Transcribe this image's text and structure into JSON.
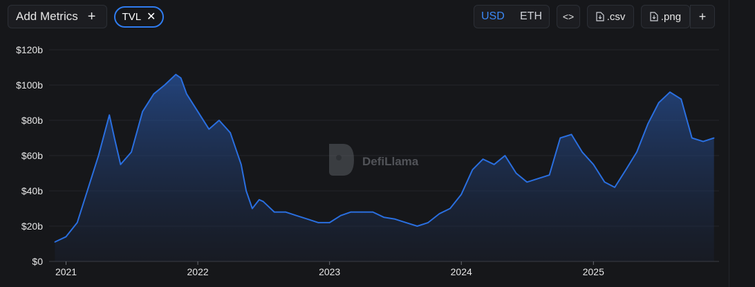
{
  "toolbar": {
    "add_metrics_label": "Add Metrics",
    "add_metrics_icon": "plus-icon",
    "chip_label": "TVL",
    "chip_close_icon": "close-icon",
    "currency_options": [
      "USD",
      "ETH"
    ],
    "currency_selected": "USD",
    "embed_icon": "code-icon",
    "csv_label": ".csv",
    "png_label": ".png",
    "file_icon": "download-file-icon",
    "more_icon": "plus-icon"
  },
  "watermark": "DefiLlama",
  "colors": {
    "accent": "#3b88f5",
    "line": "#2a6fe0",
    "background": "#16171a"
  },
  "chart_data": {
    "type": "area",
    "title": "",
    "xlabel": "",
    "ylabel": "",
    "series": [
      {
        "x": [
          "2020-12-01",
          "2021-01-01",
          "2021-02-01",
          "2021-03-01",
          "2021-04-01",
          "2021-05-01",
          "2021-05-15",
          "2021-06-01",
          "2021-07-01",
          "2021-08-01",
          "2021-09-01",
          "2021-10-01",
          "2021-11-01",
          "2021-11-15",
          "2021-12-01",
          "2022-01-01",
          "2022-02-01",
          "2022-03-01",
          "2022-04-01",
          "2022-05-01",
          "2022-05-15",
          "2022-06-01",
          "2022-06-20",
          "2022-07-01",
          "2022-08-01",
          "2022-09-01",
          "2022-10-01",
          "2022-11-01",
          "2022-12-01",
          "2023-01-01",
          "2023-02-01",
          "2023-03-01",
          "2023-04-01",
          "2023-05-01",
          "2023-06-01",
          "2023-07-01",
          "2023-08-01",
          "2023-09-01",
          "2023-10-01",
          "2023-11-01",
          "2023-12-01",
          "2024-01-01",
          "2024-02-01",
          "2024-03-01",
          "2024-04-01",
          "2024-05-01",
          "2024-06-01",
          "2024-07-01",
          "2024-08-01",
          "2024-09-01",
          "2024-10-01",
          "2024-11-01",
          "2024-12-01",
          "2025-01-01",
          "2025-02-01",
          "2025-03-01",
          "2025-04-01",
          "2025-05-01",
          "2025-06-01",
          "2025-07-01",
          "2025-08-01",
          "2025-09-01",
          "2025-10-01",
          "2025-11-01",
          "2025-12-01"
        ],
        "values": [
          11,
          14,
          22,
          40,
          60,
          83,
          70,
          55,
          62,
          85,
          95,
          100,
          106,
          104,
          95,
          85,
          75,
          80,
          73,
          55,
          40,
          30,
          35,
          34,
          28,
          28,
          26,
          24,
          22,
          22,
          26,
          28,
          28,
          28,
          25,
          24,
          22,
          20,
          22,
          27,
          30,
          38,
          52,
          58,
          55,
          60,
          50,
          45,
          47,
          49,
          70,
          72,
          62,
          55,
          45,
          42,
          52,
          62,
          78,
          90,
          96,
          92,
          70,
          68,
          70
        ]
      }
    ],
    "x_range": [
      "2020-11-15",
      "2025-12-15"
    ],
    "x_ticks": [
      "2021",
      "2022",
      "2023",
      "2024",
      "2025"
    ],
    "ylim": [
      0,
      120
    ],
    "y_ticks": [
      "$0",
      "$20b",
      "$40b",
      "$60b",
      "$80b",
      "$100b",
      "$120b"
    ],
    "grid": true,
    "legend": "none"
  }
}
